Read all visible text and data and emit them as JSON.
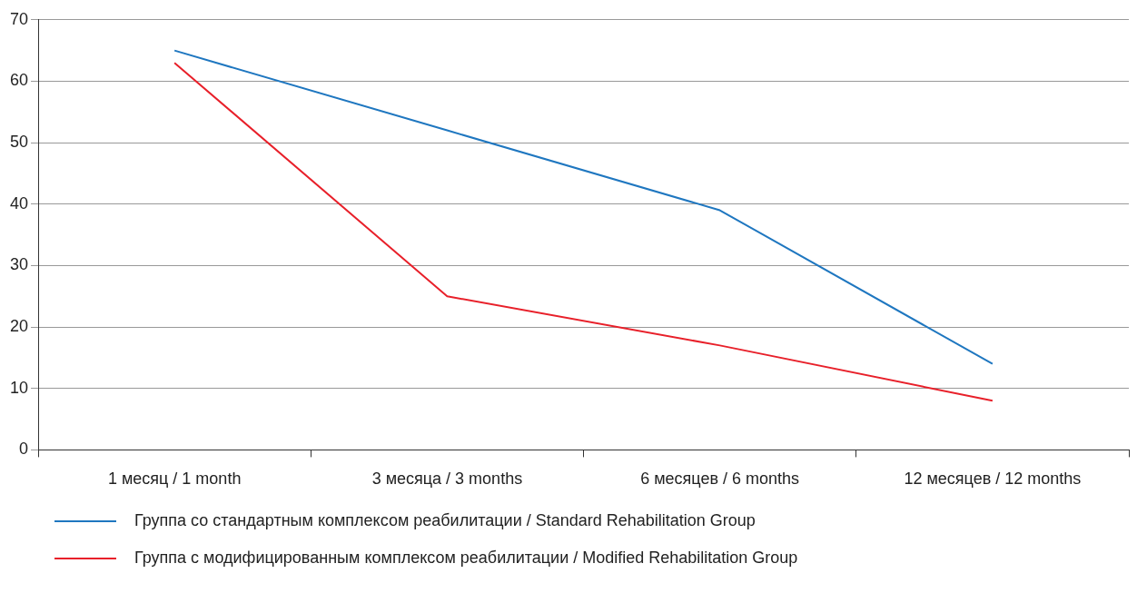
{
  "chart_data": {
    "type": "line",
    "categories": [
      "1 месяц / 1 month",
      "3 месяца / 3 months",
      "6 месяцев / 6 months",
      "12 месяцев / 12 months"
    ],
    "series": [
      {
        "name": "Группа со стандартным комплексом реабилитации / Standard Rehabilitation Group",
        "color": "#1f77c0",
        "values": [
          65,
          52,
          39,
          14
        ]
      },
      {
        "name": "Группа с модифицированным комплексом реабилитации / Modified Rehabilitation Group",
        "color": "#e8202a",
        "values": [
          63,
          25,
          17,
          8
        ]
      }
    ],
    "ylim": [
      0,
      70
    ],
    "yticks": [
      0,
      10,
      20,
      30,
      40,
      50,
      60,
      70
    ],
    "grid": "y",
    "legend": "bottom",
    "marker": "none",
    "line_style": "solid"
  }
}
